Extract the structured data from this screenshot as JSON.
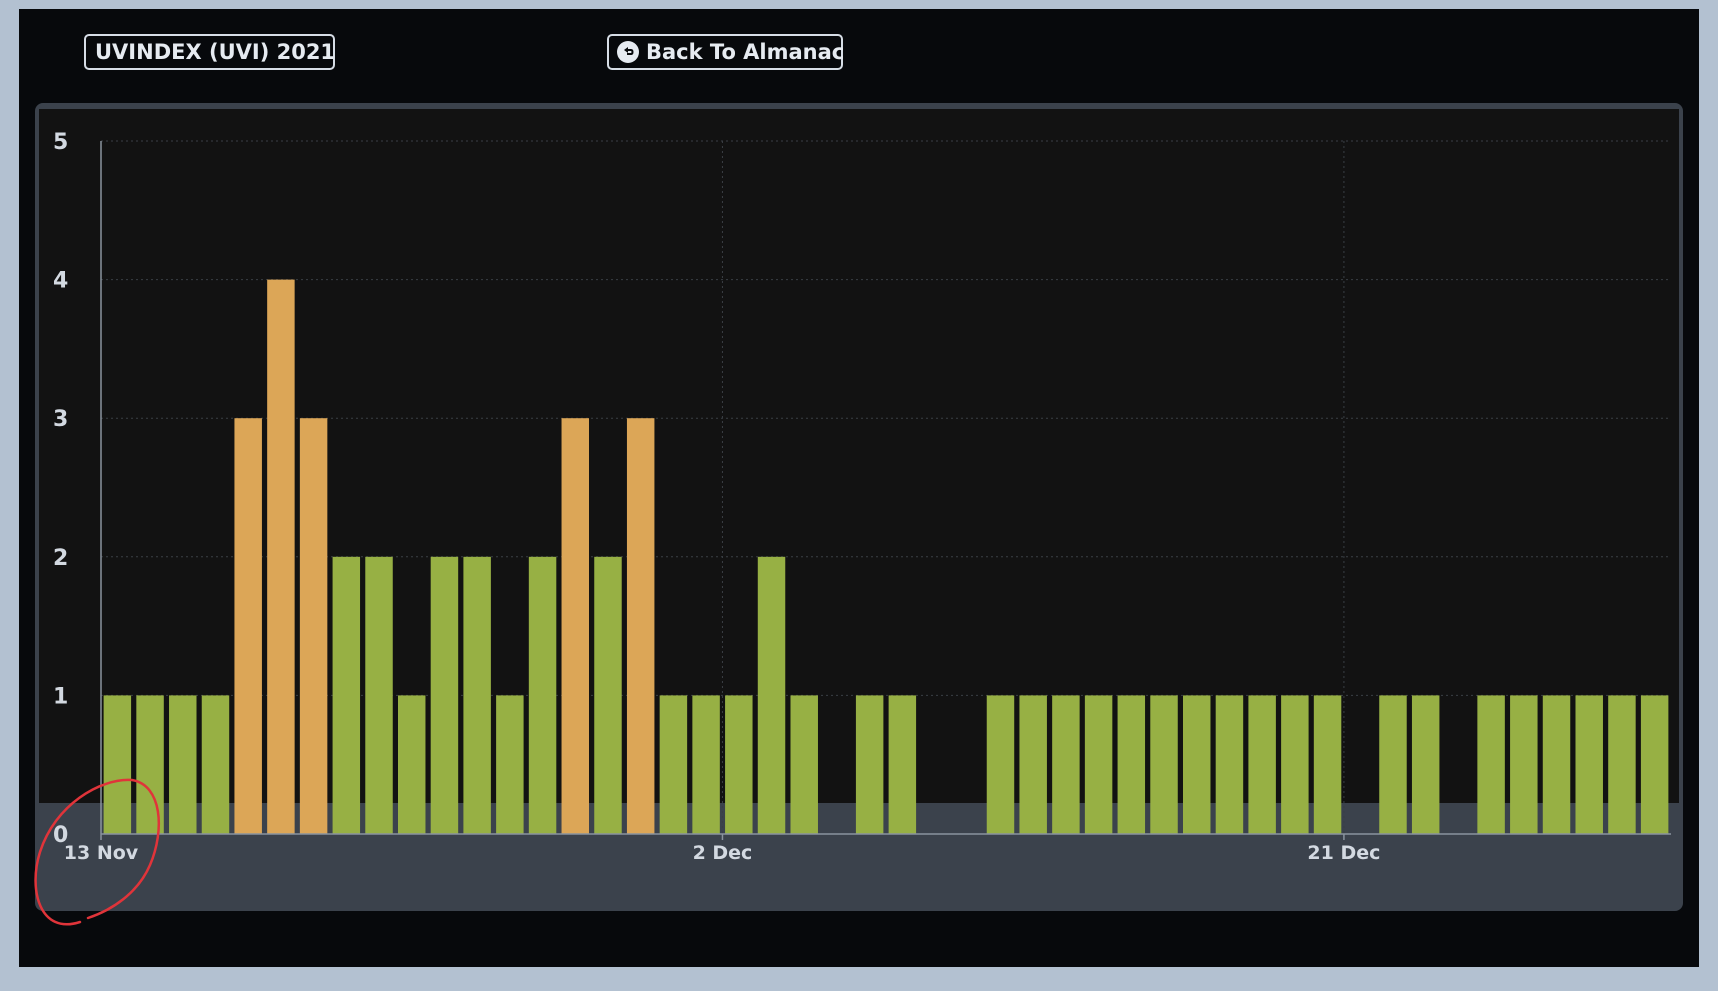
{
  "header": {
    "title": "UVINDEX (UVI) 2021",
    "back_label": "Back To Almanac"
  },
  "colors": {
    "page_bg": "#b3c1d1",
    "panel_bg": "#07090c",
    "plot_bg": "#121212",
    "bar_low": "#97b044",
    "bar_moderate": "#dca657",
    "annotation": "#e0343a"
  },
  "icons": {
    "back": "back-arrow-circle-icon"
  },
  "chart_data": {
    "type": "bar",
    "title": "",
    "xlabel": "",
    "ylabel": "",
    "ylim": [
      0,
      5
    ],
    "yticks": [
      0,
      1,
      2,
      3,
      4,
      5
    ],
    "x_tick_labels": [
      {
        "date": "2021-11-13",
        "label": "13 Nov"
      },
      {
        "date": "2021-12-02",
        "label": "2 Dec"
      },
      {
        "date": "2021-12-21",
        "label": "21 Dec"
      }
    ],
    "x_range": [
      "2021-11-13",
      "2021-12-30"
    ],
    "grid": true,
    "legend": "none",
    "moderate_threshold": 3,
    "dates": [
      "2021-11-13",
      "2021-11-14",
      "2021-11-15",
      "2021-11-16",
      "2021-11-17",
      "2021-11-18",
      "2021-11-19",
      "2021-11-20",
      "2021-11-21",
      "2021-11-22",
      "2021-11-23",
      "2021-11-24",
      "2021-11-25",
      "2021-11-26",
      "2021-11-27",
      "2021-11-28",
      "2021-11-29",
      "2021-11-30",
      "2021-12-01",
      "2021-12-02",
      "2021-12-03",
      "2021-12-04",
      "2021-12-05",
      "2021-12-06",
      "2021-12-07",
      "2021-12-08",
      "2021-12-09",
      "2021-12-10",
      "2021-12-11",
      "2021-12-12",
      "2021-12-13",
      "2021-12-14",
      "2021-12-15",
      "2021-12-16",
      "2021-12-17",
      "2021-12-18",
      "2021-12-19",
      "2021-12-20",
      "2021-12-21",
      "2021-12-22",
      "2021-12-23",
      "2021-12-24",
      "2021-12-25",
      "2021-12-26",
      "2021-12-27",
      "2021-12-28",
      "2021-12-29",
      "2021-12-30"
    ],
    "values": [
      1,
      1,
      1,
      1,
      3,
      4,
      3,
      2,
      2,
      1,
      2,
      2,
      1,
      2,
      3,
      2,
      3,
      1,
      1,
      1,
      2,
      1,
      0,
      1,
      1,
      0,
      0,
      1,
      1,
      1,
      1,
      1,
      1,
      1,
      1,
      1,
      1,
      1,
      0,
      1,
      1,
      0,
      1,
      1,
      1,
      1,
      1,
      1
    ]
  }
}
